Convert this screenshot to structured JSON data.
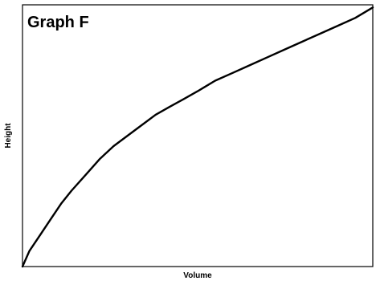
{
  "chart_data": {
    "type": "line",
    "title": "Graph F",
    "xlabel": "Volume",
    "ylabel": "Height",
    "xlim": [
      0,
      100
    ],
    "ylim": [
      0,
      100
    ],
    "grid": false,
    "x_ticks_shown": false,
    "y_ticks_shown": false,
    "series": [
      {
        "color": "#000000",
        "x": [
          0,
          2,
          5,
          8,
          11,
          14,
          18,
          22,
          26,
          30,
          34,
          38,
          42,
          46,
          50,
          55,
          60,
          65,
          70,
          75,
          80,
          85,
          90,
          95,
          100
        ],
        "y": [
          0,
          6,
          12,
          18,
          24,
          29,
          35,
          41,
          46,
          50,
          54,
          58,
          61,
          64,
          67,
          71,
          74,
          77,
          80,
          83,
          86,
          89,
          92,
          95,
          99
        ]
      }
    ]
  }
}
